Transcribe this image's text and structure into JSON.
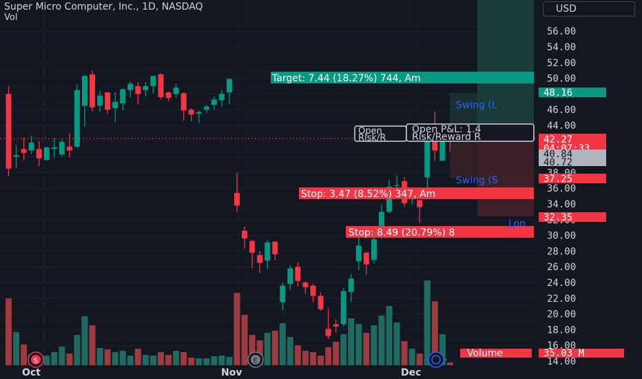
{
  "header": {
    "title": "Super Micro Computer, Inc., 1D, NASDAQ",
    "volume_label": "Vol"
  },
  "currency_button": "USD",
  "x_axis": {
    "labels": [
      "Oct",
      "Nov",
      "Dec"
    ]
  },
  "markers": {
    "split": "S",
    "earnings": "E"
  },
  "colors": {
    "up": "#089981",
    "down": "#f23645",
    "up_volume": "#1f6b5f",
    "down_volume": "#9c3c41",
    "background": "#131722",
    "blue": "#2962ff"
  },
  "trade_labels": {
    "target": "Target: 7.44 (18.27%) 744, Am",
    "stop_short": "Stop: 3.47 (8.52%) 347, Am",
    "stop_long": "Stop: 8.49 (20.79%) 8",
    "swing_upper": "Swing (L",
    "swing_lower": "Swing (S",
    "long": "Lon",
    "open_left_1": "Open",
    "open_left_2": "Risk/R",
    "open_right_1": "Open P&L: 1.4",
    "open_right_2": "Risk/Reward R"
  },
  "price_badges": {
    "target_price": "48.16",
    "last_price": "42.27",
    "countdown": "04:07:33",
    "gray_1": "40.84",
    "gray_2": "40.72",
    "swing_price": "37.25",
    "stop_price": "32.35",
    "volume_label": "Volume",
    "volume_value": "35.03 M"
  },
  "chart_data": {
    "type": "candlestick",
    "title": "Super Micro Computer, Inc., 1D, NASDAQ",
    "y_axis": {
      "ticks": [
        "56.00",
        "54.00",
        "52.00",
        "50.00",
        "48.00",
        "46.00",
        "44.00",
        "42.00",
        "40.00",
        "38.00",
        "36.00",
        "34.00",
        "32.00",
        "30.00",
        "28.00",
        "26.00",
        "24.00",
        "22.00",
        "20.00",
        "18.00",
        "16.00",
        "14.00"
      ],
      "range": [
        14,
        58
      ]
    },
    "x_axis": {
      "ticks": [
        "Oct",
        "Nov",
        "Dec"
      ]
    },
    "last_price": 42.27,
    "candles": [
      {
        "o": 48,
        "h": 49,
        "c": 38.5,
        "l": 37.5,
        "v": 9.7
      },
      {
        "o": 40,
        "h": 41.5,
        "c": 40.2,
        "l": 38.5,
        "v": 4.8
      },
      {
        "o": 41,
        "h": 42.5,
        "c": 40.5,
        "l": 39.5,
        "v": 3.0
      },
      {
        "o": 40.8,
        "h": 42.7,
        "c": 41.8,
        "l": 40.3,
        "v": 1.6
      },
      {
        "o": 41,
        "h": 42,
        "c": 39.8,
        "l": 38.8,
        "v": 1.5
      },
      {
        "o": 39.6,
        "h": 41.3,
        "c": 41.2,
        "l": 39.5,
        "v": 1.4
      },
      {
        "o": 41,
        "h": 42.4,
        "c": 41.2,
        "l": 39.9,
        "v": 1.9
      },
      {
        "o": 40.3,
        "h": 42.2,
        "c": 41.9,
        "l": 40,
        "v": 2.7
      },
      {
        "o": 41.3,
        "h": 43,
        "c": 40.8,
        "l": 39.9,
        "v": 1.7
      },
      {
        "o": 41.3,
        "h": 49.2,
        "c": 48.5,
        "l": 41.1,
        "v": 4.4
      },
      {
        "o": 46.5,
        "h": 50.4,
        "c": 50.3,
        "l": 43.8,
        "v": 7.1
      },
      {
        "o": 50.5,
        "h": 51,
        "c": 46.3,
        "l": 45.8,
        "v": 5.8
      },
      {
        "o": 46.5,
        "h": 48.4,
        "c": 47.8,
        "l": 45.7,
        "v": 2.5
      },
      {
        "o": 48.2,
        "h": 48.3,
        "c": 46,
        "l": 45.5,
        "v": 2.3
      },
      {
        "o": 46.2,
        "h": 48.2,
        "c": 47,
        "l": 44.4,
        "v": 1.9
      },
      {
        "o": 46.8,
        "h": 48.7,
        "c": 48.6,
        "l": 45.9,
        "v": 2.1
      },
      {
        "o": 48.5,
        "h": 49.6,
        "c": 49.3,
        "l": 47.6,
        "v": 1.4
      },
      {
        "o": 49,
        "h": 49.5,
        "c": 48,
        "l": 46.7,
        "v": 2.4
      },
      {
        "o": 48.5,
        "h": 49.5,
        "c": 49,
        "l": 47.7,
        "v": 1.5
      },
      {
        "o": 49,
        "h": 50.2,
        "c": 50.3,
        "l": 48.1,
        "v": 1.4
      },
      {
        "o": 50.5,
        "h": 50.6,
        "c": 47.6,
        "l": 47.3,
        "v": 1.9
      },
      {
        "o": 48.2,
        "h": 48.3,
        "c": 47.5,
        "l": 47.1,
        "v": 1.5
      },
      {
        "o": 48,
        "h": 49.3,
        "c": 48.8,
        "l": 47.5,
        "v": 2.1
      },
      {
        "o": 48.1,
        "h": 48.2,
        "c": 45.9,
        "l": 44.6,
        "v": 1.9
      },
      {
        "o": 46,
        "h": 46.2,
        "c": 45.4,
        "l": 44.5,
        "v": 1.1
      },
      {
        "o": 45.5,
        "h": 45.9,
        "c": 45.7,
        "l": 44.3,
        "v": 1.0
      },
      {
        "o": 46,
        "h": 46.6,
        "c": 46.4,
        "l": 45.6,
        "v": 1.0
      },
      {
        "o": 46.6,
        "h": 47.7,
        "c": 47.3,
        "l": 46,
        "v": 1.3
      },
      {
        "o": 47.2,
        "h": 48.5,
        "c": 48,
        "l": 46.4,
        "v": 1.4
      },
      {
        "o": 48.2,
        "h": 50,
        "c": 49.9,
        "l": 46.7,
        "v": 1.2
      },
      {
        "o": 35.4,
        "h": 38,
        "c": 33.8,
        "l": 33,
        "v": 10.5
      },
      {
        "o": 30.6,
        "h": 31.1,
        "c": 29.6,
        "l": 28.3,
        "v": 7.3
      },
      {
        "o": 29.3,
        "h": 29.4,
        "c": 27.8,
        "l": 25.8,
        "v": 4.4
      },
      {
        "o": 27.5,
        "h": 28,
        "c": 26.5,
        "l": 25.2,
        "v": 3.6
      },
      {
        "o": 26.8,
        "h": 29.4,
        "c": 29.1,
        "l": 25.7,
        "v": 4.7
      },
      {
        "o": 29.2,
        "h": 29.3,
        "c": 27.6,
        "l": 26.8,
        "v": 5.0
      },
      {
        "o": 21.5,
        "h": 24,
        "c": 23.6,
        "l": 20.5,
        "v": 6.1
      },
      {
        "o": 23.8,
        "h": 26.2,
        "c": 25.8,
        "l": 23,
        "v": 4.1
      },
      {
        "o": 26,
        "h": 26.6,
        "c": 24.2,
        "l": 23.5,
        "v": 2.9
      },
      {
        "o": 24,
        "h": 24.2,
        "c": 23.4,
        "l": 22.5,
        "v": 2.1
      },
      {
        "o": 23.6,
        "h": 23.8,
        "c": 22.3,
        "l": 21.5,
        "v": 1.9
      },
      {
        "o": 22.3,
        "h": 22.8,
        "c": 20.6,
        "l": 20.4,
        "v": 1.4
      },
      {
        "o": 18.1,
        "h": 20.7,
        "c": 17.2,
        "l": 16.8,
        "v": 2.6
      },
      {
        "o": 18.7,
        "h": 19.3,
        "c": 18.4,
        "l": 17.6,
        "v": 3.4
      },
      {
        "o": 18.7,
        "h": 23.3,
        "c": 22.9,
        "l": 18.4,
        "v": 4.5
      },
      {
        "o": 22.8,
        "h": 25.1,
        "c": 24.5,
        "l": 21.5,
        "v": 6.8
      },
      {
        "o": 26.7,
        "h": 30.1,
        "c": 28.7,
        "l": 25.6,
        "v": 6.0
      },
      {
        "o": 27.8,
        "h": 27.9,
        "c": 26.3,
        "l": 25,
        "v": 4.7
      },
      {
        "o": 26.9,
        "h": 29.8,
        "c": 29.5,
        "l": 26.4,
        "v": 5.8
      },
      {
        "o": 29.8,
        "h": 33.9,
        "c": 33,
        "l": 29.6,
        "v": 7.2
      },
      {
        "o": 33,
        "h": 37.1,
        "c": 36.2,
        "l": 32.8,
        "v": 8.6
      },
      {
        "o": 36.3,
        "h": 37.6,
        "c": 36.4,
        "l": 34.8,
        "v": 6.2
      },
      {
        "o": 36.9,
        "h": 37.4,
        "c": 34.1,
        "l": 33.6,
        "v": 3.5
      },
      {
        "o": 34.6,
        "h": 36.1,
        "c": 35.2,
        "l": 33.9,
        "v": 2.4
      },
      {
        "o": 34.5,
        "h": 34.5,
        "c": 33.6,
        "l": 31.6,
        "v": 1.7
      },
      {
        "o": 37.4,
        "h": 43.2,
        "c": 42.1,
        "l": 35.7,
        "v": 12.3
      },
      {
        "o": 43.1,
        "h": 45.8,
        "c": 40.8,
        "l": 39.5,
        "v": 9.3
      },
      {
        "o": 39.5,
        "h": 42.6,
        "c": 42.3,
        "l": 39.5,
        "v": 4.5
      },
      {
        "o": 42.3,
        "h": 43.4,
        "c": 42.2,
        "l": 40.7,
        "v": 0.4
      }
    ]
  }
}
